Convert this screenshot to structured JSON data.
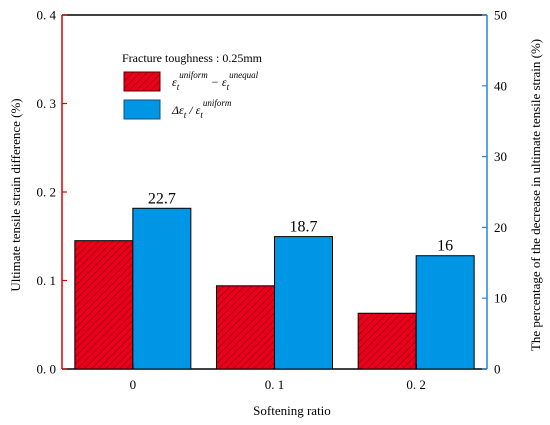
{
  "chart_data": {
    "type": "bar",
    "categories": [
      "0",
      "0. 1",
      "0. 2"
    ],
    "xlabel": "Softening ratio",
    "ylabel_left": "Ultimate tensile strain difference (%)",
    "ylabel_right": "The percentage of the decrease in ultimate tensile strain (%)",
    "ylim_left": [
      0,
      0.4
    ],
    "ylim_right": [
      0,
      50
    ],
    "left_ticks": [
      "0. 0",
      "0. 1",
      "0. 2",
      "0. 3",
      "0. 4"
    ],
    "right_ticks": [
      "0",
      "10",
      "20",
      "30",
      "40",
      "50"
    ],
    "legend_title": "Fracture toughness : 0.25mm",
    "legend_placement": "top-left",
    "grid": false,
    "series": [
      {
        "name_parts": [
          "ε",
          "t",
          "uniform",
          " − ε",
          "t",
          "unequal"
        ],
        "axis": "left",
        "values": [
          0.145,
          0.094,
          0.063
        ],
        "color": "#e8001c",
        "hatch": true
      },
      {
        "name_parts": [
          "Δε",
          "t",
          " / ε",
          "t",
          "uniform"
        ],
        "axis": "right",
        "values": [
          22.7,
          18.7,
          16
        ],
        "data_labels": [
          "22.7",
          "18.7",
          "16"
        ],
        "color": "#0096e6"
      }
    ],
    "colors": {
      "left_axis": "#e00000",
      "right_axis": "#2b86d4"
    }
  }
}
